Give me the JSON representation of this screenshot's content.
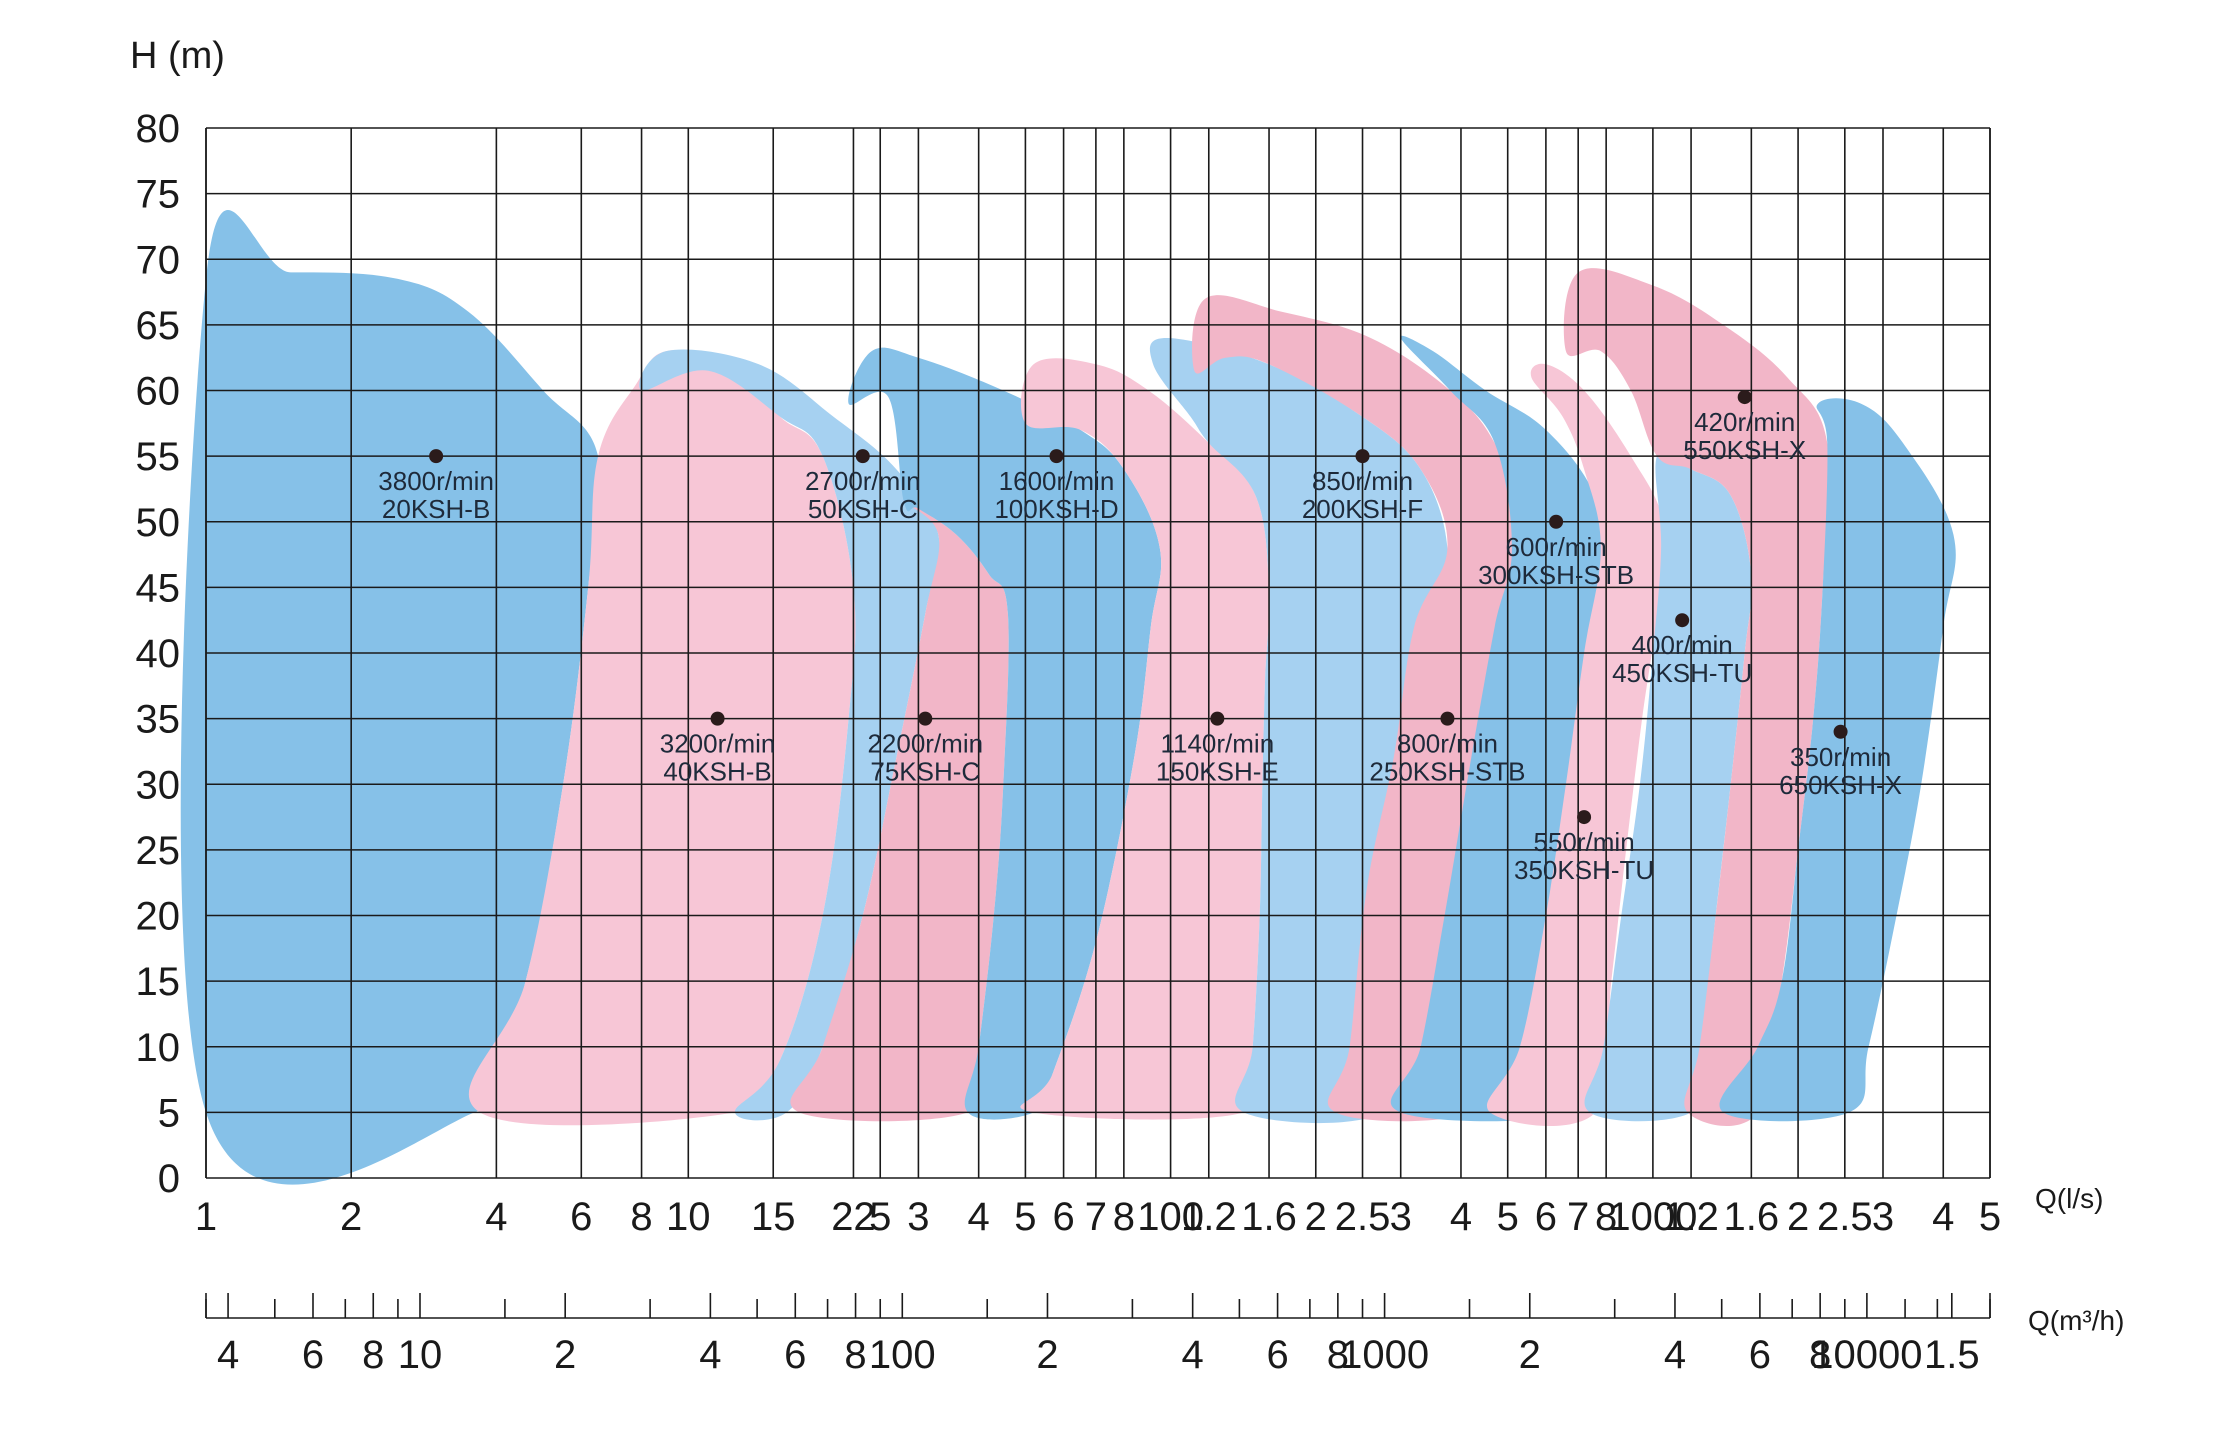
{
  "chart_data": {
    "type": "area",
    "title": "",
    "ylabel": "H (m)",
    "xlabel": "Q(l/s)",
    "secondary_xlabel": "Q(m³/h)",
    "ylim": [
      0,
      80
    ],
    "y_ticks": [
      0,
      5,
      10,
      15,
      20,
      25,
      30,
      35,
      40,
      45,
      50,
      55,
      60,
      65,
      70,
      75,
      80
    ],
    "x_scale": "log",
    "xlim_ls": [
      1,
      5000
    ],
    "x_ticks": [
      {
        "value": 1,
        "label": "1"
      },
      {
        "value": 2,
        "label": "2"
      },
      {
        "value": 4,
        "label": "4"
      },
      {
        "value": 6,
        "label": "6"
      },
      {
        "value": 8,
        "label": "8"
      },
      {
        "value": 10,
        "label": "10"
      },
      {
        "value": 15,
        "label": "15"
      },
      {
        "value": 22,
        "label": "22"
      },
      {
        "value": 25,
        "label": "5"
      },
      {
        "value": 30,
        "label": "3"
      },
      {
        "value": 40,
        "label": "4"
      },
      {
        "value": 50,
        "label": "5"
      },
      {
        "value": 60,
        "label": "6"
      },
      {
        "value": 70,
        "label": "7"
      },
      {
        "value": 80,
        "label": "8"
      },
      {
        "value": 100,
        "label": "100"
      },
      {
        "value": 120,
        "label": "1.2"
      },
      {
        "value": 160,
        "label": "1.6"
      },
      {
        "value": 200,
        "label": "2"
      },
      {
        "value": 250,
        "label": "2.5"
      },
      {
        "value": 300,
        "label": "3"
      },
      {
        "value": 400,
        "label": "4"
      },
      {
        "value": 500,
        "label": "5"
      },
      {
        "value": 600,
        "label": "6"
      },
      {
        "value": 700,
        "label": "7"
      },
      {
        "value": 800,
        "label": "8"
      },
      {
        "value": 1000,
        "label": "1000"
      },
      {
        "value": 1200,
        "label": "1.2"
      },
      {
        "value": 1600,
        "label": "1.6"
      },
      {
        "value": 2000,
        "label": "2"
      },
      {
        "value": 2500,
        "label": "2.5"
      },
      {
        "value": 3000,
        "label": "3"
      },
      {
        "value": 4000,
        "label": "4"
      },
      {
        "value": 5000,
        "label": "5"
      }
    ],
    "x2_ticks": [
      {
        "value": 4,
        "label": "4"
      },
      {
        "value": 6,
        "label": "6"
      },
      {
        "value": 8,
        "label": "8"
      },
      {
        "value": 10,
        "label": "10"
      },
      {
        "value": 20,
        "label": "2"
      },
      {
        "value": 40,
        "label": "4"
      },
      {
        "value": 60,
        "label": "6"
      },
      {
        "value": 80,
        "label": "8"
      },
      {
        "value": 100,
        "label": "100"
      },
      {
        "value": 200,
        "label": "2"
      },
      {
        "value": 400,
        "label": "4"
      },
      {
        "value": 600,
        "label": "6"
      },
      {
        "value": 800,
        "label": "8"
      },
      {
        "value": 1000,
        "label": "1000"
      },
      {
        "value": 2000,
        "label": "2"
      },
      {
        "value": 4000,
        "label": "4"
      },
      {
        "value": 6000,
        "label": "6"
      },
      {
        "value": 8000,
        "label": "8"
      },
      {
        "value": 10000,
        "label": "10000"
      },
      {
        "value": 15000,
        "label": "1.5"
      }
    ],
    "x2_minor_ticks": [
      3.6,
      5,
      7,
      9,
      15,
      30,
      50,
      70,
      90,
      150,
      300,
      500,
      700,
      900,
      1500,
      3000,
      5000,
      7000,
      9000,
      12000,
      14000,
      18000
    ],
    "series": [
      {
        "name": "20KSH-B",
        "speed": "3800r/min",
        "color": "#86c1e8",
        "point_q": 3.0,
        "point_h": 55,
        "outline": [
          [
            1,
            68.5
          ],
          [
            1.5,
            69
          ],
          [
            2.5,
            68.5
          ],
          [
            3.5,
            66
          ],
          [
            5,
            60
          ],
          [
            6.5,
            55
          ],
          [
            6.2,
            45
          ],
          [
            5.5,
            30
          ],
          [
            4.6,
            15
          ],
          [
            3.6,
            5
          ],
          [
            1,
            5
          ]
        ]
      },
      {
        "name": "40KSH-B",
        "speed": "3200r/min",
        "color": "#f7c6d6",
        "point_q": 11.5,
        "point_h": 35,
        "outline": [
          [
            7.8,
            60.5
          ],
          [
            9,
            63
          ],
          [
            12,
            62
          ],
          [
            15.5,
            58
          ],
          [
            19,
            55
          ],
          [
            22,
            45
          ],
          [
            21.5,
            35
          ],
          [
            19,
            20
          ],
          [
            15.5,
            9
          ],
          [
            12.5,
            5
          ],
          [
            3.7,
            5
          ],
          [
            4.6,
            15
          ],
          [
            5.5,
            30
          ],
          [
            6.2,
            45
          ],
          [
            6.5,
            55
          ]
        ]
      },
      {
        "name": "50KSH-C",
        "speed": "2700r/min",
        "color": "#a6d1f1",
        "point_q": 23,
        "point_h": 55,
        "outline": [
          [
            8,
            60
          ],
          [
            9,
            63
          ],
          [
            14,
            62
          ],
          [
            20,
            58
          ],
          [
            27,
            54
          ],
          [
            33,
            49
          ],
          [
            31,
            43
          ],
          [
            27,
            32
          ],
          [
            23,
            20
          ],
          [
            19,
            10
          ],
          [
            16,
            5
          ],
          [
            12.5,
            5
          ],
          [
            15.5,
            9
          ],
          [
            19,
            20
          ],
          [
            21.5,
            35
          ],
          [
            22,
            45
          ],
          [
            19,
            55
          ],
          [
            15.5,
            58
          ],
          [
            11,
            61.5
          ]
        ]
      },
      {
        "name": "75KSH-C",
        "speed": "2200r/min",
        "color": "#f2b6c8",
        "point_q": 31,
        "point_h": 35,
        "outline": [
          [
            28,
            51.5
          ],
          [
            30,
            51
          ],
          [
            36,
            49
          ],
          [
            42,
            46
          ],
          [
            46,
            43
          ],
          [
            45,
            30
          ],
          [
            43,
            20
          ],
          [
            40,
            10
          ],
          [
            38,
            5
          ],
          [
            17,
            5
          ],
          [
            19,
            10
          ],
          [
            23,
            20
          ],
          [
            27,
            32
          ],
          [
            31,
            43
          ],
          [
            33,
            49
          ]
        ]
      },
      {
        "name": "100KSH-D",
        "speed": "1600r/min",
        "color": "#86c1e8",
        "point_q": 58,
        "point_h": 55,
        "outline": [
          [
            21.5,
            59
          ],
          [
            24,
            63
          ],
          [
            30,
            62.5
          ],
          [
            45,
            60
          ],
          [
            65,
            57
          ],
          [
            80,
            54
          ],
          [
            95,
            48
          ],
          [
            91,
            42
          ],
          [
            84,
            32
          ],
          [
            70,
            18
          ],
          [
            57,
            8
          ],
          [
            52,
            5
          ],
          [
            38,
            5
          ],
          [
            40,
            10
          ],
          [
            43,
            20
          ],
          [
            45,
            30
          ],
          [
            46,
            43
          ],
          [
            42,
            46
          ],
          [
            36,
            49
          ],
          [
            30,
            51
          ],
          [
            28,
            51.5
          ],
          [
            26,
            59.5
          ]
        ]
      },
      {
        "name": "150KSH-E",
        "speed": "1140r/min",
        "color": "#f7c6d6",
        "point_q": 125,
        "point_h": 35,
        "outline": [
          [
            50,
            57.5
          ],
          [
            52,
            62
          ],
          [
            70,
            62
          ],
          [
            90,
            60
          ],
          [
            120,
            56
          ],
          [
            150,
            52
          ],
          [
            160,
            45
          ],
          [
            157,
            38
          ],
          [
            155,
            30
          ],
          [
            153,
            20
          ],
          [
            148,
            10
          ],
          [
            142,
            5
          ],
          [
            52,
            5
          ],
          [
            57,
            8
          ],
          [
            70,
            18
          ],
          [
            84,
            32
          ],
          [
            91,
            42
          ],
          [
            95,
            48
          ],
          [
            80,
            54
          ],
          [
            65,
            57
          ]
        ]
      },
      {
        "name": "200KSH-F",
        "speed": "850r/min",
        "color": "#a6d1f1",
        "point_q": 250,
        "point_h": 55,
        "outline": [
          [
            92,
            62
          ],
          [
            98,
            64
          ],
          [
            160,
            62
          ],
          [
            250,
            58
          ],
          [
            330,
            54
          ],
          [
            375,
            48
          ],
          [
            355,
            42
          ],
          [
            330,
            32
          ],
          [
            310,
            22
          ],
          [
            290,
            12
          ],
          [
            275,
            5
          ],
          [
            142,
            5
          ],
          [
            148,
            10
          ],
          [
            153,
            20
          ],
          [
            155,
            30
          ],
          [
            157,
            38
          ],
          [
            160,
            45
          ],
          [
            150,
            52
          ],
          [
            120,
            56
          ],
          [
            110,
            58
          ]
        ]
      },
      {
        "name": "250KSH-STB",
        "speed": "800r/min",
        "color": "#f2b6c8",
        "point_q": 375,
        "point_h": 35,
        "outline": [
          [
            112,
            61.5
          ],
          [
            118,
            67
          ],
          [
            170,
            66
          ],
          [
            260,
            64
          ],
          [
            380,
            60
          ],
          [
            470,
            56
          ],
          [
            540,
            50
          ],
          [
            510,
            42
          ],
          [
            480,
            30
          ],
          [
            460,
            20
          ],
          [
            440,
            10
          ],
          [
            420,
            5
          ],
          [
            220,
            5
          ],
          [
            235,
            10
          ],
          [
            255,
            22
          ],
          [
            290,
            32
          ],
          [
            320,
            42
          ],
          [
            375,
            48
          ],
          [
            330,
            54
          ],
          [
            250,
            58
          ],
          [
            160,
            62
          ],
          [
            130,
            62.5
          ]
        ]
      },
      {
        "name": "300KSH-STB",
        "speed": "600r/min",
        "color": "#86c1e8",
        "point_q": 630,
        "point_h": 50,
        "outline": [
          [
            300,
            64
          ],
          [
            350,
            63
          ],
          [
            450,
            60
          ],
          [
            600,
            57
          ],
          [
            760,
            52
          ],
          [
            870,
            45
          ],
          [
            840,
            40
          ],
          [
            800,
            30
          ],
          [
            760,
            20
          ],
          [
            720,
            10
          ],
          [
            700,
            5
          ],
          [
            300,
            5
          ],
          [
            330,
            10
          ],
          [
            370,
            20
          ],
          [
            420,
            32
          ],
          [
            470,
            42
          ],
          [
            510,
            48
          ],
          [
            470,
            56
          ],
          [
            380,
            60
          ]
        ]
      },
      {
        "name": "350KSH-TU",
        "speed": "550r/min",
        "color": "#f7c6d6",
        "point_q": 720,
        "point_h": 27.5,
        "outline": [
          [
            560,
            61
          ],
          [
            600,
            62
          ],
          [
            720,
            60
          ],
          [
            900,
            55
          ],
          [
            1050,
            50
          ],
          [
            1030,
            44
          ],
          [
            950,
            35
          ],
          [
            880,
            25
          ],
          [
            820,
            15
          ],
          [
            760,
            5
          ],
          [
            460,
            5
          ],
          [
            530,
            10
          ],
          [
            600,
            20
          ],
          [
            660,
            30
          ],
          [
            720,
            40
          ],
          [
            780,
            48
          ],
          [
            720,
            54
          ],
          [
            650,
            58
          ]
        ]
      },
      {
        "name": "450KSH-TU",
        "speed": "400r/min",
        "color": "#a6d1f1",
        "point_q": 1150,
        "point_h": 42.5,
        "outline": [
          [
            1020,
            55
          ],
          [
            1200,
            54
          ],
          [
            1450,
            52
          ],
          [
            1600,
            46
          ],
          [
            1550,
            40
          ],
          [
            1450,
            30
          ],
          [
            1350,
            20
          ],
          [
            1260,
            10
          ],
          [
            1200,
            5
          ],
          [
            740,
            5
          ],
          [
            790,
            10
          ],
          [
            860,
            20
          ],
          [
            940,
            30
          ],
          [
            1000,
            40
          ],
          [
            1040,
            48
          ]
        ]
      },
      {
        "name": "550KSH-X",
        "speed": "420r/min",
        "color": "#f2b6c8",
        "point_q": 1550,
        "point_h": 59.5,
        "outline": [
          [
            660,
            63
          ],
          [
            700,
            69
          ],
          [
            1000,
            68
          ],
          [
            1400,
            65
          ],
          [
            1900,
            61
          ],
          [
            2300,
            56
          ],
          [
            2250,
            45
          ],
          [
            2150,
            35
          ],
          [
            2000,
            25
          ],
          [
            1850,
            15
          ],
          [
            1650,
            5
          ],
          [
            1180,
            5
          ],
          [
            1250,
            10
          ],
          [
            1350,
            20
          ],
          [
            1450,
            30
          ],
          [
            1550,
            40
          ],
          [
            1600,
            46
          ],
          [
            1450,
            52
          ],
          [
            1200,
            54
          ],
          [
            1020,
            55
          ],
          [
            900,
            60
          ],
          [
            780,
            63
          ]
        ]
      },
      {
        "name": "650KSH-X",
        "speed": "350r/min",
        "color": "#86c1e8",
        "point_q": 2450,
        "point_h": 34,
        "outline": [
          [
            2200,
            59
          ],
          [
            2700,
            59
          ],
          [
            3300,
            56
          ],
          [
            4200,
            49
          ],
          [
            4000,
            42
          ],
          [
            3600,
            30
          ],
          [
            3200,
            20
          ],
          [
            2800,
            10
          ],
          [
            2550,
            5
          ],
          [
            1400,
            5
          ],
          [
            1650,
            10
          ],
          [
            1850,
            15
          ],
          [
            2000,
            25
          ],
          [
            2150,
            35
          ],
          [
            2250,
            45
          ],
          [
            2300,
            56
          ]
        ]
      }
    ]
  }
}
